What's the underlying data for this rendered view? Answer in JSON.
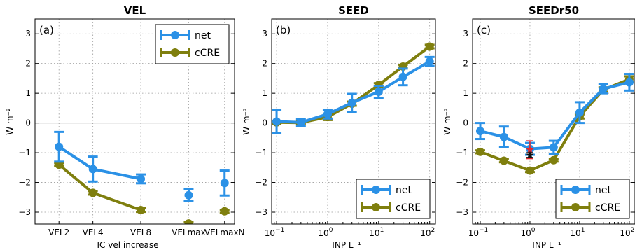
{
  "colors": {
    "net": "#2b91e6",
    "ccre": "#7f7f0e",
    "marker_red": "#e3262b",
    "marker_black": "#111111",
    "zero_line": "#6b6b6b"
  },
  "chart_data": [
    {
      "type": "line",
      "panel": "(a)",
      "title": "VEL",
      "xlabel": "IC vel increase",
      "ylabel": "W m⁻²",
      "ylim": [
        -3.4,
        3.5
      ],
      "yticks": [
        -3,
        -2,
        -1,
        0,
        1,
        2,
        3
      ],
      "grid": true,
      "legend_position": "top-right",
      "categories": [
        "VEL2",
        "VEL4",
        "VEL8",
        "VELmax",
        "VELmaxN"
      ],
      "series": [
        {
          "name": "net",
          "key": "net",
          "values": [
            -0.8,
            -1.55,
            -1.88,
            -2.43,
            -2.02
          ],
          "err": [
            0.5,
            0.42,
            0.15,
            0.2,
            0.42
          ],
          "connected_to_index": 2
        },
        {
          "name": "cCRE",
          "key": "ccre",
          "values": [
            -1.4,
            -2.35,
            -2.93,
            -3.38,
            -2.97
          ],
          "err": [
            0.05,
            0.06,
            0.06,
            0.05,
            0.05
          ],
          "connected_to_index": 2
        }
      ]
    },
    {
      "type": "line",
      "panel": "(b)",
      "title": "SEED",
      "xlabel": "INP L⁻¹",
      "ylabel": "W m⁻²",
      "xscale": "log",
      "xlim": [
        0.08,
        130
      ],
      "ylim": [
        -3.4,
        3.5
      ],
      "yticks": [
        -3,
        -2,
        -1,
        0,
        1,
        2,
        3
      ],
      "xticks_exp": [
        -1,
        0,
        1,
        2
      ],
      "grid": true,
      "legend_position": "lower-right",
      "x": [
        0.1,
        0.3,
        1,
        3,
        10,
        30,
        100
      ],
      "series": [
        {
          "name": "net",
          "key": "net",
          "values": [
            0.05,
            0.02,
            0.3,
            0.68,
            1.05,
            1.55,
            2.07
          ],
          "err": [
            0.38,
            0.12,
            0.15,
            0.3,
            0.2,
            0.28,
            0.15
          ]
        },
        {
          "name": "cCRE",
          "key": "ccre",
          "values": [
            0.02,
            0.01,
            0.2,
            0.65,
            1.28,
            1.9,
            2.57
          ],
          "err": [
            0.05,
            0.05,
            0.1,
            0.07,
            0.06,
            0.06,
            0.06
          ]
        }
      ]
    },
    {
      "type": "line",
      "panel": "(c)",
      "title": "SEEDr50",
      "xlabel": "INP L⁻¹",
      "ylabel": "W m⁻²",
      "xscale": "log",
      "xlim": [
        0.07,
        130
      ],
      "ylim": [
        -3.4,
        3.5
      ],
      "yticks": [
        -3,
        -2,
        -1,
        0,
        1,
        2,
        3
      ],
      "xticks_exp": [
        -1,
        0,
        1,
        2
      ],
      "grid": true,
      "legend_position": "lower-right",
      "x": [
        0.1,
        0.3,
        1,
        3,
        10,
        30,
        100
      ],
      "series": [
        {
          "name": "net",
          "key": "net",
          "values": [
            -0.27,
            -0.47,
            -0.87,
            -0.82,
            0.35,
            1.15,
            1.37
          ],
          "err": [
            0.27,
            0.35,
            0.2,
            0.22,
            0.35,
            0.15,
            0.28
          ]
        },
        {
          "name": "cCRE",
          "key": "ccre",
          "values": [
            -0.97,
            -1.27,
            -1.6,
            -1.25,
            0.22,
            1.12,
            1.47
          ],
          "err": [
            0.05,
            0.05,
            0.05,
            0.05,
            0.07,
            0.08,
            0.1
          ]
        }
      ],
      "markers": [
        {
          "x": 1,
          "y": -0.9,
          "err": 0.3,
          "color_key": "marker_red"
        },
        {
          "x": 1,
          "y": -1.08,
          "err": 0.08,
          "color_key": "marker_black"
        }
      ]
    }
  ]
}
